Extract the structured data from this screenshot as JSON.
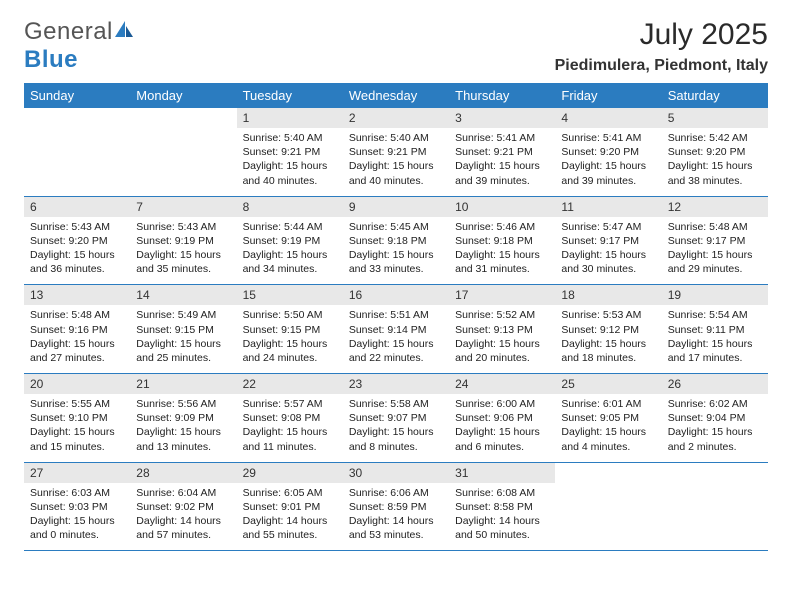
{
  "brand": {
    "name1": "General",
    "name2": "Blue"
  },
  "title": "July 2025",
  "location": "Piedimulera, Piedmont, Italy",
  "colors": {
    "accent": "#2b7cc0",
    "dayBg": "#e8e8e8",
    "text": "#222"
  },
  "fontFamily": "Arial",
  "days": [
    "Sunday",
    "Monday",
    "Tuesday",
    "Wednesday",
    "Thursday",
    "Friday",
    "Saturday"
  ],
  "firstWeekday": 2,
  "cells": [
    {
      "n": "1",
      "rise": "5:40 AM",
      "set": "9:21 PM",
      "dl": "15 hours and 40 minutes."
    },
    {
      "n": "2",
      "rise": "5:40 AM",
      "set": "9:21 PM",
      "dl": "15 hours and 40 minutes."
    },
    {
      "n": "3",
      "rise": "5:41 AM",
      "set": "9:21 PM",
      "dl": "15 hours and 39 minutes."
    },
    {
      "n": "4",
      "rise": "5:41 AM",
      "set": "9:20 PM",
      "dl": "15 hours and 39 minutes."
    },
    {
      "n": "5",
      "rise": "5:42 AM",
      "set": "9:20 PM",
      "dl": "15 hours and 38 minutes."
    },
    {
      "n": "6",
      "rise": "5:43 AM",
      "set": "9:20 PM",
      "dl": "15 hours and 36 minutes."
    },
    {
      "n": "7",
      "rise": "5:43 AM",
      "set": "9:19 PM",
      "dl": "15 hours and 35 minutes."
    },
    {
      "n": "8",
      "rise": "5:44 AM",
      "set": "9:19 PM",
      "dl": "15 hours and 34 minutes."
    },
    {
      "n": "9",
      "rise": "5:45 AM",
      "set": "9:18 PM",
      "dl": "15 hours and 33 minutes."
    },
    {
      "n": "10",
      "rise": "5:46 AM",
      "set": "9:18 PM",
      "dl": "15 hours and 31 minutes."
    },
    {
      "n": "11",
      "rise": "5:47 AM",
      "set": "9:17 PM",
      "dl": "15 hours and 30 minutes."
    },
    {
      "n": "12",
      "rise": "5:48 AM",
      "set": "9:17 PM",
      "dl": "15 hours and 29 minutes."
    },
    {
      "n": "13",
      "rise": "5:48 AM",
      "set": "9:16 PM",
      "dl": "15 hours and 27 minutes."
    },
    {
      "n": "14",
      "rise": "5:49 AM",
      "set": "9:15 PM",
      "dl": "15 hours and 25 minutes."
    },
    {
      "n": "15",
      "rise": "5:50 AM",
      "set": "9:15 PM",
      "dl": "15 hours and 24 minutes."
    },
    {
      "n": "16",
      "rise": "5:51 AM",
      "set": "9:14 PM",
      "dl": "15 hours and 22 minutes."
    },
    {
      "n": "17",
      "rise": "5:52 AM",
      "set": "9:13 PM",
      "dl": "15 hours and 20 minutes."
    },
    {
      "n": "18",
      "rise": "5:53 AM",
      "set": "9:12 PM",
      "dl": "15 hours and 18 minutes."
    },
    {
      "n": "19",
      "rise": "5:54 AM",
      "set": "9:11 PM",
      "dl": "15 hours and 17 minutes."
    },
    {
      "n": "20",
      "rise": "5:55 AM",
      "set": "9:10 PM",
      "dl": "15 hours and 15 minutes."
    },
    {
      "n": "21",
      "rise": "5:56 AM",
      "set": "9:09 PM",
      "dl": "15 hours and 13 minutes."
    },
    {
      "n": "22",
      "rise": "5:57 AM",
      "set": "9:08 PM",
      "dl": "15 hours and 11 minutes."
    },
    {
      "n": "23",
      "rise": "5:58 AM",
      "set": "9:07 PM",
      "dl": "15 hours and 8 minutes."
    },
    {
      "n": "24",
      "rise": "6:00 AM",
      "set": "9:06 PM",
      "dl": "15 hours and 6 minutes."
    },
    {
      "n": "25",
      "rise": "6:01 AM",
      "set": "9:05 PM",
      "dl": "15 hours and 4 minutes."
    },
    {
      "n": "26",
      "rise": "6:02 AM",
      "set": "9:04 PM",
      "dl": "15 hours and 2 minutes."
    },
    {
      "n": "27",
      "rise": "6:03 AM",
      "set": "9:03 PM",
      "dl": "15 hours and 0 minutes."
    },
    {
      "n": "28",
      "rise": "6:04 AM",
      "set": "9:02 PM",
      "dl": "14 hours and 57 minutes."
    },
    {
      "n": "29",
      "rise": "6:05 AM",
      "set": "9:01 PM",
      "dl": "14 hours and 55 minutes."
    },
    {
      "n": "30",
      "rise": "6:06 AM",
      "set": "8:59 PM",
      "dl": "14 hours and 53 minutes."
    },
    {
      "n": "31",
      "rise": "6:08 AM",
      "set": "8:58 PM",
      "dl": "14 hours and 50 minutes."
    }
  ],
  "labels": {
    "sunrise": "Sunrise:",
    "sunset": "Sunset:",
    "daylight": "Daylight:"
  }
}
